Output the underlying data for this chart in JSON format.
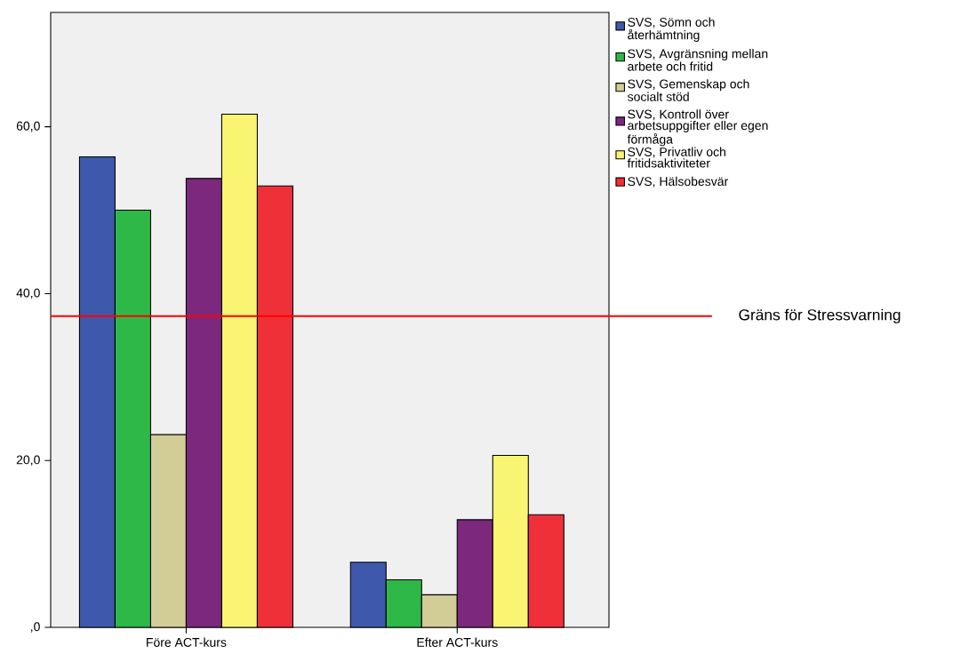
{
  "chart_data": {
    "type": "bar",
    "categories": [
      "Före ACT-kurs",
      "Efter ACT-kurs"
    ],
    "series": [
      {
        "name": "SVS, Sömn och återhämtning",
        "color": "#3e58ac",
        "values": [
          56.4,
          7.8
        ]
      },
      {
        "name": "SVS, Avgränsning mellan arbete och fritid",
        "color": "#2eb848",
        "values": [
          50.0,
          5.7
        ]
      },
      {
        "name": "SVS, Gemenskap och socialt stöd",
        "color": "#d2cc96",
        "values": [
          23.1,
          3.9
        ]
      },
      {
        "name": "SVS, Kontroll över arbetsuppgifter eller egen förmåga",
        "color": "#7b287d",
        "values": [
          53.8,
          12.9
        ]
      },
      {
        "name": "SVS, Privatliv och fritidsaktiviteter",
        "color": "#f9f573",
        "values": [
          61.5,
          20.6
        ]
      },
      {
        "name": "SVS, Hälsobesvär",
        "color": "#ef3038",
        "values": [
          52.9,
          13.5
        ]
      }
    ],
    "ylim": [
      0,
      73.7
    ],
    "yticks": [
      {
        "value": 0,
        "label": ",0"
      },
      {
        "value": 20,
        "label": "20,0"
      },
      {
        "value": 40,
        "label": "40,0"
      },
      {
        "value": 60,
        "label": "60,0"
      }
    ],
    "ref_lines": [
      {
        "axis": "y",
        "value": 37.3,
        "label": "Gräns för Stressvarning",
        "color": "#ff0000"
      }
    ],
    "legend": "right"
  }
}
